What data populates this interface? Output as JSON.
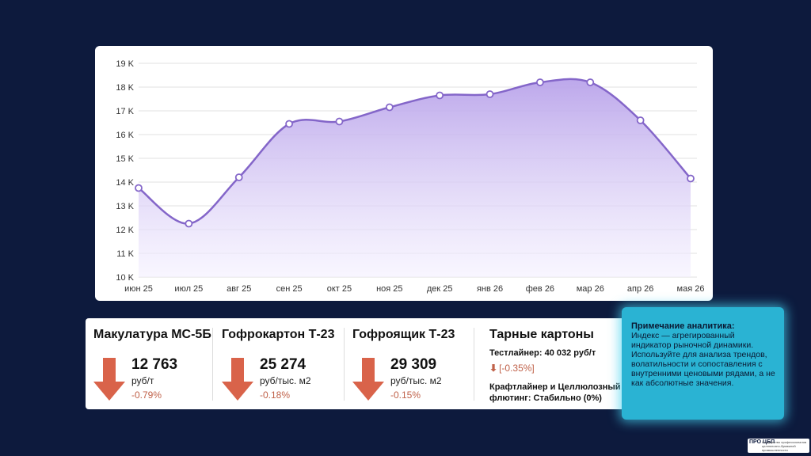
{
  "chart_data": {
    "type": "area",
    "categories": [
      "июн 25",
      "июл 25",
      "авг 25",
      "сен 25",
      "окт 25",
      "ноя 25",
      "дек 25",
      "янв 26",
      "фев 26",
      "мар 26",
      "апр 26",
      "мая 26"
    ],
    "series": [
      {
        "values": [
          13750,
          12250,
          14200,
          16450,
          16550,
          17150,
          17650,
          17700,
          18200,
          18200,
          16600,
          14150
        ]
      }
    ],
    "y_ticks": [
      "10 K",
      "11 K",
      "12 K",
      "13 K",
      "14 K",
      "15 K",
      "16 K",
      "17 K",
      "18 K",
      "19 K"
    ],
    "ylim": [
      10000,
      19000
    ],
    "grid": true,
    "colors": {
      "line": "#8466c9",
      "fill_top": "#b9a3ea",
      "fill_bottom": "#f4f0ff",
      "point": "#ffffff"
    }
  },
  "metrics": [
    {
      "title": "Макулатура МС-5Б",
      "value": "12 763",
      "unit": "руб/т",
      "change": "-0.79%"
    },
    {
      "title": "Гофрокартон Т-23",
      "value": "25 274",
      "unit": "руб/тыс. м2",
      "change": "-0.18%"
    },
    {
      "title": "Гофроящик Т-23",
      "value": "29 309",
      "unit": "руб/тыс. м2",
      "change": "-0.15%"
    }
  ],
  "cartons": {
    "title": "Тарные картоны",
    "line1": "Тестлайнер: 40 032 руб/т",
    "change": "[-0.35%]",
    "line2": "Крафтлайнер и Целлюлозный флютинг: Стабильно (0%)"
  },
  "note": {
    "title": "Примечание аналитика:",
    "text": "Индекс — агрегированный индикатор рыночной динамики. Используйте для анализа трендов, волатильности и сопоставления с внутренними ценовыми рядами, а не как абсолютные значения."
  },
  "logo": {
    "mark": "ПРО ЦБП",
    "text": "Сообщество профессионалов целлюлозно-бумажной промышленности"
  },
  "colors": {
    "background": "#0d1a3d",
    "arrow": "#d9634a",
    "note_bg": "#2ab3d3"
  }
}
